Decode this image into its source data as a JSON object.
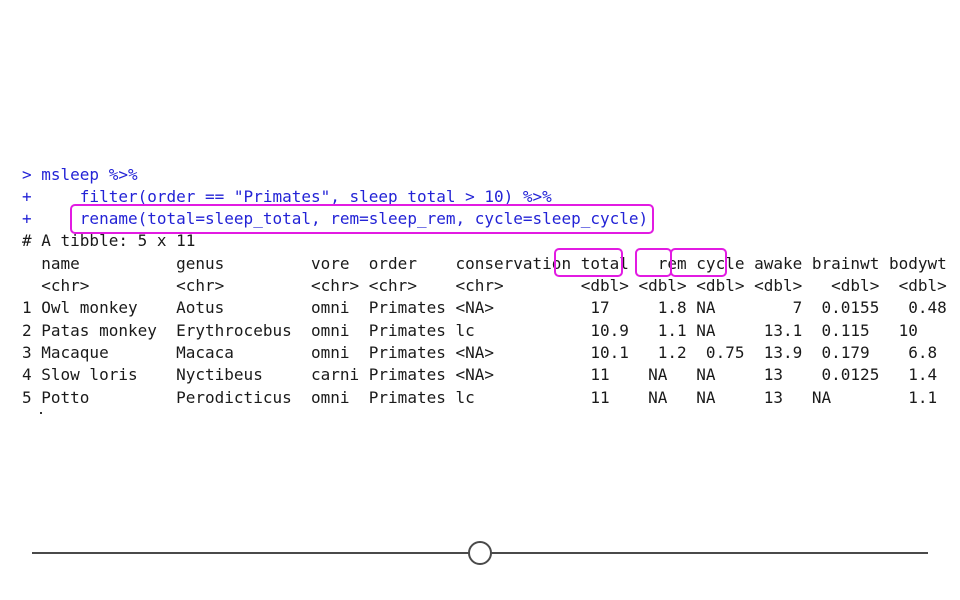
{
  "console": {
    "command_lines": [
      "> msleep %>%",
      "+     filter(order == \"Primates\", sleep_total > 10) %>%",
      "+     rename(total=sleep_total, rem=sleep_rem, cycle=sleep_cycle)"
    ],
    "output_lines": [
      "# A tibble: 5 x 11",
      "  name          genus         vore  order    conservation total   rem cycle awake brainwt bodywt",
      "  <chr>         <chr>         <chr> <chr>    <chr>        <dbl> <dbl> <dbl> <dbl>   <dbl>  <dbl>",
      "1 Owl monkey    Aotus         omni  Primates <NA>          17     1.8 NA        7  0.0155   0.48",
      "2 Patas monkey  Erythrocebus  omni  Primates lc            10.9   1.1 NA     13.1  0.115   10   ",
      "3 Macaque       Macaca        omni  Primates <NA>          10.1   1.2  0.75  13.9  0.179    6.8 ",
      "4 Slow loris    Nyctibeus     carni Primates <NA>          11    NA   NA     13    0.0125   1.4 ",
      "5 Potto         Perodicticus  omni  Primates lc            11    NA   NA     13   NA        1.1 "
    ]
  },
  "highlights": [
    "rename-call",
    "total-column",
    "rem-column",
    "cycle-column"
  ],
  "colors": {
    "command": "#2323d6",
    "output": "#1a1a1a",
    "highlight": "#e21be2",
    "slider": "#4a4a4a"
  },
  "slider": {
    "position_fraction": 0.5
  }
}
